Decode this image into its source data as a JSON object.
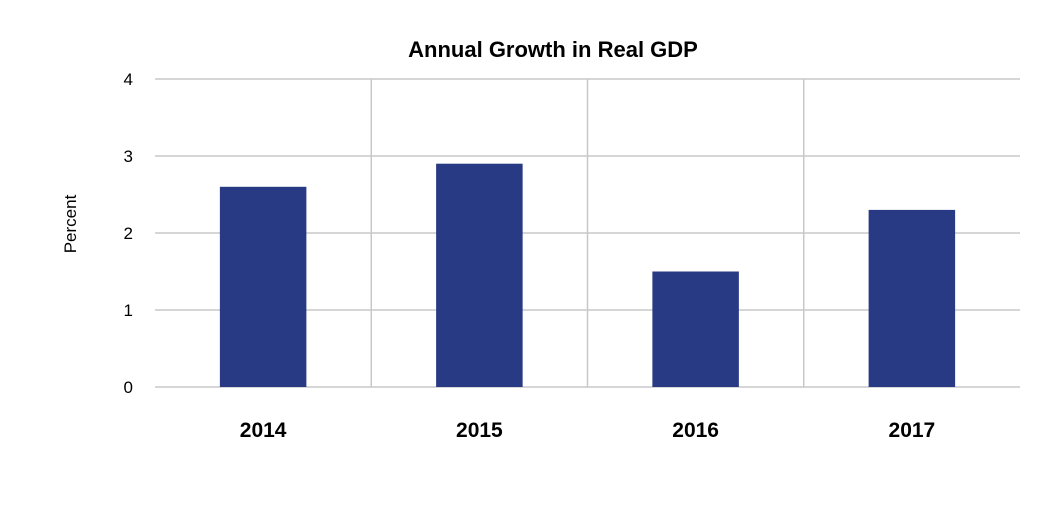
{
  "chart_data": {
    "type": "bar",
    "title": "Annual Growth in Real GDP",
    "xlabel": "",
    "ylabel": "Percent",
    "categories": [
      "2014",
      "2015",
      "2016",
      "2017"
    ],
    "series": [
      {
        "values": [
          2.6,
          2.9,
          1.5,
          2.3
        ]
      }
    ],
    "ylim": [
      0,
      4
    ],
    "yticks": [
      "0",
      "1",
      "2",
      "3",
      "4"
    ],
    "grid": true,
    "legend": "none",
    "colors": {
      "bar": "#283a83",
      "grid": "#c8c8c8",
      "text": "#000000"
    }
  }
}
